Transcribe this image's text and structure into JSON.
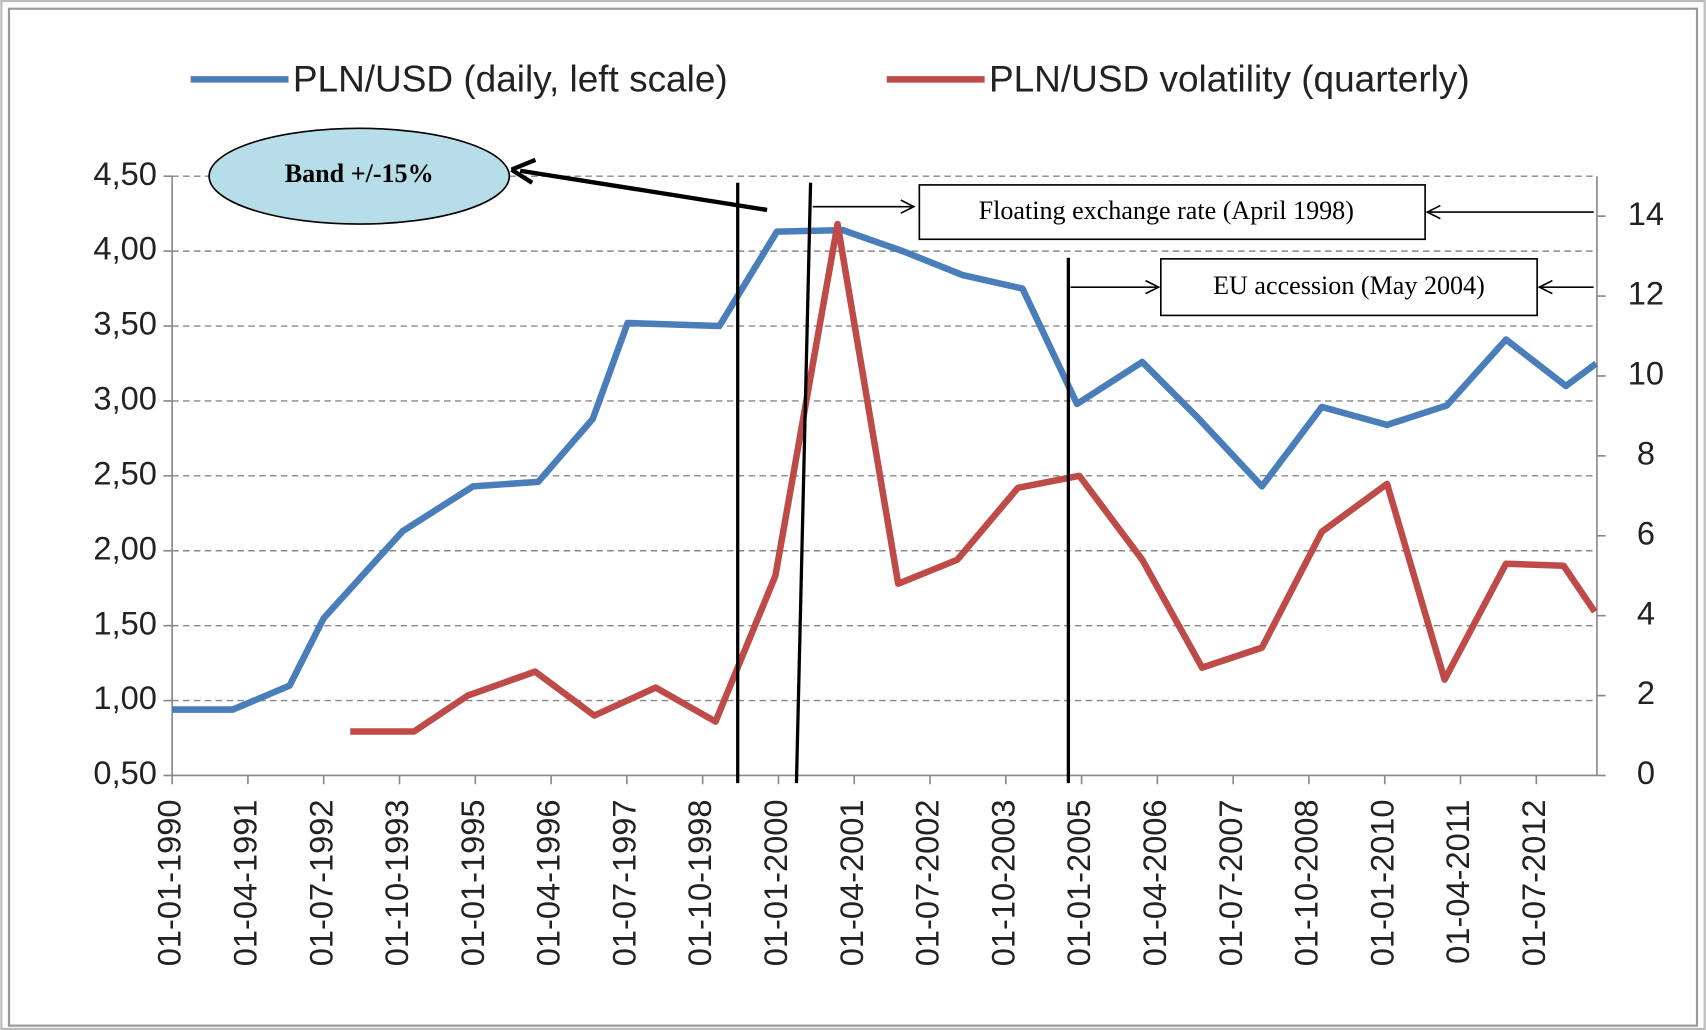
{
  "chart_data": {
    "type": "line",
    "categories": [
      "01-01-1990",
      "01-04-1991",
      "01-07-1992",
      "01-10-1993",
      "01-01-1995",
      "01-04-1996",
      "01-07-1997",
      "01-10-1998",
      "01-01-2000",
      "01-04-2001",
      "01-07-2002",
      "01-10-2003",
      "01-01-2005",
      "01-04-2006",
      "01-07-2007",
      "01-10-2008",
      "01-01-2010",
      "01-04-2011",
      "01-07-2012"
    ],
    "xlim": [
      0,
      18.8
    ],
    "ylim": [
      0.5,
      4.5
    ],
    "yticks": [
      {
        "value": 0.5,
        "label": "0,50"
      },
      {
        "value": 1,
        "label": "1,00"
      },
      {
        "value": 1.5,
        "label": "1,50"
      },
      {
        "value": 2,
        "label": "2,00"
      },
      {
        "value": 2.5,
        "label": "2,50"
      },
      {
        "value": 3,
        "label": "3,00"
      },
      {
        "value": 3.5,
        "label": "3,50"
      },
      {
        "value": 4,
        "label": "4,00"
      },
      {
        "value": 4.5,
        "label": "4,50"
      }
    ],
    "y2lim": [
      0,
      15
    ],
    "y2ticks": [
      0,
      2,
      4,
      6,
      8,
      10,
      12,
      14
    ],
    "grid": true,
    "legend": "top",
    "series": [
      {
        "name": "PLN/USD (daily, left scale)",
        "color": "#4a7ebb",
        "x": [
          0,
          0.8,
          1.55,
          2.0,
          3.04,
          3.97,
          4.83,
          5.55,
          6.01,
          7.22,
          7.98,
          8.85,
          9.64,
          10.43,
          11.22,
          11.94,
          12.8,
          13.51,
          14.38,
          15.17,
          16.03,
          16.82,
          17.6,
          18.39,
          18.79
        ],
        "values": [
          0.94,
          0.94,
          1.1,
          1.55,
          2.13,
          2.43,
          2.46,
          2.88,
          3.52,
          3.5,
          4.13,
          4.14,
          4.0,
          3.84,
          3.75,
          2.98,
          3.26,
          2.9,
          2.43,
          2.96,
          2.84,
          2.97,
          3.41,
          3.1,
          3.25
        ]
      },
      {
        "name": "PLN/USD volatility (quarterly)",
        "color": "#be4b48",
        "axis": "y2",
        "x": [
          2.35,
          3.19,
          3.9,
          4.79,
          5.57,
          6.38,
          7.17,
          7.96,
          8.78,
          9.58,
          10.36,
          11.16,
          11.97,
          12.8,
          13.59,
          14.38,
          15.17,
          16.03,
          16.79,
          17.6,
          18.36,
          18.77
        ],
        "values": [
          1.1,
          1.1,
          2.0,
          2.6,
          1.5,
          2.2,
          1.35,
          5.0,
          13.8,
          4.8,
          5.4,
          7.2,
          7.5,
          5.4,
          2.7,
          3.2,
          6.1,
          7.3,
          2.4,
          5.3,
          5.25,
          4.1
        ]
      }
    ],
    "annotations": [
      "Band +/-15%",
      "Floating exchange rate (April 1998)",
      "EU accession (May 2004)"
    ]
  }
}
